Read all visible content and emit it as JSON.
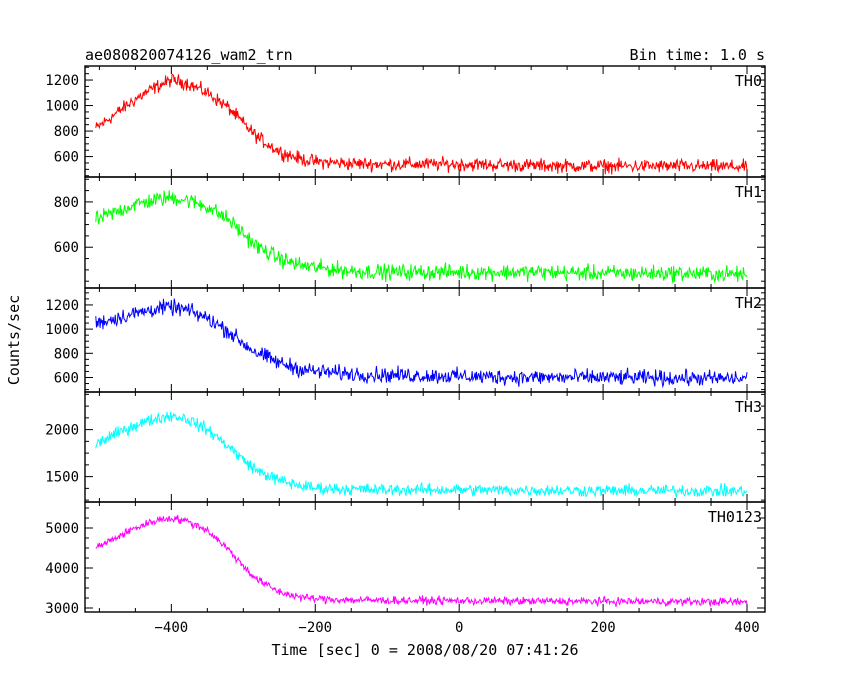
{
  "header": {
    "title": "ae080820074126_wam2_trn",
    "bin_time": "Bin time: 1.0 s"
  },
  "chart_data": {
    "type": "line",
    "title": "ae080820074126_wam2_trn",
    "subtitle": "Bin time: 1.0 s",
    "xlabel": "Time [sec] 0 = 2008/08/20 07:41:26",
    "ylabel": "Counts/sec",
    "xlim": [
      -520,
      425
    ],
    "x_ticks": [
      -400,
      -200,
      0,
      200,
      400
    ],
    "x_tick_labels": [
      "−400",
      "−200",
      "0",
      "200",
      "400"
    ],
    "grid": false,
    "panels": [
      {
        "name": "TH0",
        "color": "#ff0000",
        "ylim": [
          440,
          1310
        ],
        "y_ticks": [
          600,
          800,
          1000,
          1200
        ],
        "y_tick_labels": [
          "600",
          "800",
          "1000",
          "1200"
        ],
        "x": [
          -505,
          -450,
          -420,
          -400,
          -380,
          -350,
          -320,
          -300,
          -280,
          -250,
          -220,
          -200,
          -150,
          -100,
          0,
          100,
          200,
          300,
          400
        ],
        "y": [
          820,
          1050,
          1150,
          1200,
          1180,
          1100,
          980,
          860,
          750,
          640,
          580,
          560,
          545,
          540,
          540,
          530,
          525,
          525,
          520
        ],
        "noise": 45
      },
      {
        "name": "TH1",
        "color": "#00ff00",
        "ylim": [
          420,
          910
        ],
        "y_ticks": [
          600,
          800
        ],
        "y_tick_labels": [
          "600",
          "800"
        ],
        "x": [
          -505,
          -450,
          -420,
          -400,
          -380,
          -350,
          -320,
          -300,
          -280,
          -250,
          -220,
          -200,
          -150,
          -100,
          0,
          100,
          200,
          300,
          400
        ],
        "y": [
          720,
          790,
          810,
          820,
          810,
          780,
          720,
          660,
          600,
          550,
          520,
          510,
          495,
          490,
          490,
          490,
          485,
          485,
          480
        ],
        "noise": 30
      },
      {
        "name": "TH2",
        "color": "#0000ff",
        "ylim": [
          480,
          1340
        ],
        "y_ticks": [
          600,
          800,
          1000,
          1200
        ],
        "y_tick_labels": [
          "600",
          "800",
          "1000",
          "1200"
        ],
        "x": [
          -505,
          -450,
          -420,
          -400,
          -380,
          -350,
          -320,
          -300,
          -280,
          -250,
          -220,
          -200,
          -150,
          -100,
          0,
          100,
          200,
          300,
          400
        ],
        "y": [
          1050,
          1130,
          1170,
          1180,
          1160,
          1090,
          980,
          880,
          800,
          720,
          670,
          650,
          630,
          620,
          610,
          600,
          600,
          595,
          590
        ],
        "noise": 55
      },
      {
        "name": "TH3",
        "color": "#00ffff",
        "ylim": [
          1230,
          2400
        ],
        "y_ticks": [
          1500,
          2000
        ],
        "y_tick_labels": [
          "1500",
          "2000"
        ],
        "x": [
          -505,
          -450,
          -420,
          -400,
          -380,
          -350,
          -320,
          -300,
          -280,
          -250,
          -220,
          -200,
          -150,
          -100,
          0,
          100,
          200,
          300,
          400
        ],
        "y": [
          1850,
          2050,
          2120,
          2150,
          2120,
          2000,
          1820,
          1680,
          1560,
          1460,
          1400,
          1380,
          1365,
          1360,
          1360,
          1355,
          1350,
          1350,
          1345
        ],
        "noise": 55
      },
      {
        "name": "TH0123",
        "color": "#ff00ff",
        "ylim": [
          2900,
          5650
        ],
        "y_ticks": [
          3000,
          4000,
          5000
        ],
        "y_tick_labels": [
          "3000",
          "4000",
          "5000"
        ],
        "x": [
          -505,
          -450,
          -420,
          -400,
          -380,
          -350,
          -320,
          -300,
          -280,
          -250,
          -220,
          -200,
          -150,
          -100,
          0,
          100,
          200,
          300,
          400
        ],
        "y": [
          4500,
          5000,
          5200,
          5250,
          5180,
          4950,
          4450,
          4050,
          3700,
          3400,
          3270,
          3230,
          3200,
          3190,
          3180,
          3170,
          3165,
          3160,
          3150
        ],
        "noise": 85
      }
    ]
  }
}
